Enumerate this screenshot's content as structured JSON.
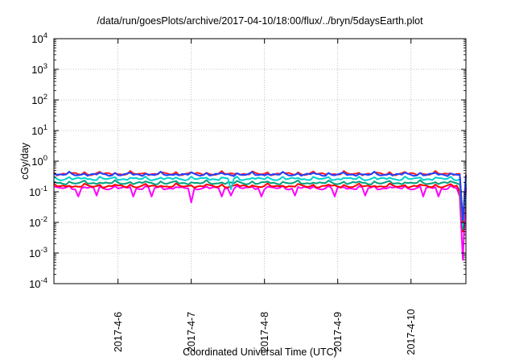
{
  "colors": {
    "frame": "#000000",
    "grid": "#b0b0b0",
    "background": "#ffffff"
  },
  "chart_data": {
    "type": "line",
    "title": "/data/run/goesPlots/archive/2017-04-10/18:00/flux/../bryn/5daysEarth.plot",
    "xlabel": "Coordinated Universal Time (UTC)",
    "ylabel": "cGy/day",
    "yscale": "log",
    "ylim": [
      0.0001,
      10000
    ],
    "xlim": [
      "2017-04-05 03:00",
      "2017-04-10 18:00"
    ],
    "grid": true,
    "legend": "none",
    "y_ticks": [
      {
        "value": 0.0001,
        "mantissa": "10",
        "exponent": "-4"
      },
      {
        "value": 0.001,
        "mantissa": "10",
        "exponent": "-3"
      },
      {
        "value": 0.01,
        "mantissa": "10",
        "exponent": "-2"
      },
      {
        "value": 0.1,
        "mantissa": "10",
        "exponent": "-1"
      },
      {
        "value": 1,
        "mantissa": "10",
        "exponent": "0"
      },
      {
        "value": 10,
        "mantissa": "10",
        "exponent": "1"
      },
      {
        "value": 100,
        "mantissa": "10",
        "exponent": "2"
      },
      {
        "value": 1000,
        "mantissa": "10",
        "exponent": "3"
      },
      {
        "value": 10000,
        "mantissa": "10",
        "exponent": "4"
      }
    ],
    "x_ticks": [
      {
        "date": "2017-04-06 00:00",
        "label": "2017-4-6"
      },
      {
        "date": "2017-04-07 00:00",
        "label": "2017-4-7"
      },
      {
        "date": "2017-04-08 00:00",
        "label": "2017-4-8"
      },
      {
        "date": "2017-04-09 00:00",
        "label": "2017-4-9"
      },
      {
        "date": "2017-04-10 00:00",
        "label": "2017-4-10"
      }
    ],
    "series": [
      {
        "color": "#ff00ff",
        "base": 0.13,
        "dips": [
          {
            "x": "2017-04-05 11:00",
            "y": 0.07
          },
          {
            "x": "2017-04-05 17:00",
            "y": 0.075
          },
          {
            "x": "2017-04-06 05:00",
            "y": 0.07
          },
          {
            "x": "2017-04-06 11:00",
            "y": 0.07
          },
          {
            "x": "2017-04-07 00:00",
            "y": 0.045
          },
          {
            "x": "2017-04-07 10:00",
            "y": 0.07
          },
          {
            "x": "2017-04-07 13:00",
            "y": 0.075
          },
          {
            "x": "2017-04-07 23:00",
            "y": 0.07
          },
          {
            "x": "2017-04-08 10:00",
            "y": 0.075
          },
          {
            "x": "2017-04-08 23:00",
            "y": 0.07
          },
          {
            "x": "2017-04-09 09:00",
            "y": 0.075
          },
          {
            "x": "2017-04-10 04:00",
            "y": 0.07
          },
          {
            "x": "2017-04-10 09:00",
            "y": 0.07
          },
          {
            "x": "2017-04-10 16:00",
            "y": 0.07
          },
          {
            "x": "2017-04-10 17:00",
            "y": 0.0006
          }
        ]
      },
      {
        "color": "#ff0000",
        "base": 0.15,
        "dips": [
          {
            "x": "2017-04-10 16:00",
            "y": 0.1
          },
          {
            "x": "2017-04-10 17:00",
            "y": 0.005
          }
        ]
      },
      {
        "color": "#00a080",
        "base": 0.19,
        "dips": [
          {
            "x": "2017-04-10 17:00",
            "y": 0.006
          }
        ]
      },
      {
        "color": "#00d0d0",
        "base": 0.26,
        "dips": [
          {
            "x": "2017-04-07 13:00",
            "y": 0.12
          },
          {
            "x": "2017-04-10 17:00",
            "y": 0.008
          }
        ]
      },
      {
        "color": "#ff2020",
        "base": 0.38,
        "dips": [
          {
            "x": "2017-04-10 17:00",
            "y": 0.01
          }
        ]
      },
      {
        "color": "#2040ff",
        "base": 0.36,
        "dips": [
          {
            "x": "2017-04-10 17:00",
            "y": 0.012
          }
        ]
      }
    ]
  }
}
